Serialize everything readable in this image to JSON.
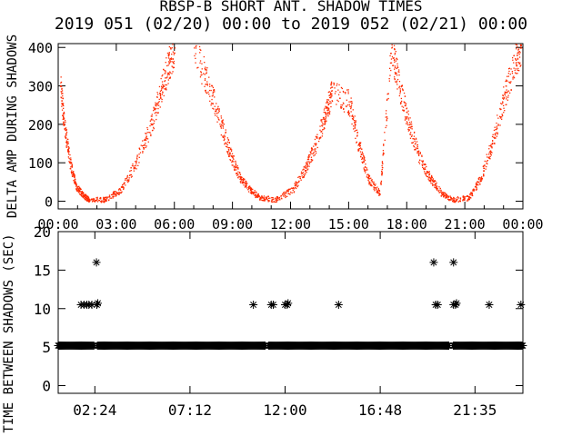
{
  "title": "RBSP-B SHORT ANT. SHADOW TIMES",
  "subtitle": "2019 051 (02/20) 00:00 to 2019 052 (02/21) 00:00",
  "colors": {
    "scatter": "#ff2a00",
    "axes": "#000000",
    "background": "#ffffff"
  },
  "chart_data": [
    {
      "type": "scatter",
      "panel": "top",
      "ylabel": "DELTA AMP DURING SHADOWS",
      "xlabel": "",
      "ylim": [
        -20,
        410
      ],
      "y_ticks": [
        "0",
        "100",
        "200",
        "300",
        "400"
      ],
      "y_tick_values": [
        0,
        100,
        200,
        300,
        400
      ],
      "xlim": [
        0,
        24
      ],
      "x_ticks": [
        "00:00",
        "03:00",
        "06:00",
        "09:00",
        "12:00",
        "15:00",
        "18:00",
        "21:00",
        "00:00"
      ],
      "x_tick_values": [
        0,
        3,
        6,
        9,
        12,
        15,
        18,
        21,
        24
      ],
      "grid": false,
      "series": [
        {
          "values": [
            [
              0.1,
              300
            ],
            [
              0.3,
              200
            ],
            [
              0.6,
              100
            ],
            [
              0.9,
              40
            ],
            [
              1.3,
              15
            ],
            [
              1.6,
              5
            ],
            [
              2.4,
              5
            ],
            [
              3.2,
              30
            ],
            [
              4.0,
              100
            ],
            [
              4.8,
              200
            ],
            [
              5.3,
              290
            ],
            [
              5.7,
              360
            ],
            [
              6.0,
              400
            ],
            [
              7.0,
              400
            ],
            [
              7.8,
              300
            ],
            [
              8.4,
              200
            ],
            [
              8.9,
              120
            ],
            [
              9.4,
              60
            ],
            [
              9.9,
              30
            ],
            [
              10.4,
              10
            ],
            [
              11.2,
              5
            ],
            [
              12.1,
              30
            ],
            [
              12.8,
              90
            ],
            [
              13.3,
              150
            ],
            [
              13.8,
              230
            ],
            [
              14.1,
              280
            ],
            [
              15.0,
              260
            ],
            [
              15.5,
              150
            ],
            [
              16.0,
              60
            ],
            [
              16.6,
              20
            ],
            [
              17.2,
              400
            ],
            [
              17.6,
              300
            ],
            [
              18.1,
              200
            ],
            [
              18.6,
              120
            ],
            [
              19.2,
              60
            ],
            [
              19.8,
              20
            ],
            [
              20.4,
              5
            ],
            [
              21.2,
              10
            ],
            [
              21.8,
              60
            ],
            [
              22.4,
              150
            ],
            [
              23.0,
              270
            ],
            [
              23.6,
              370
            ],
            [
              23.9,
              400
            ]
          ]
        }
      ]
    },
    {
      "type": "scatter",
      "panel": "bottom",
      "ylabel": "TIME BETWEEN SHADOWS (SEC)",
      "xlabel": "",
      "ylim": [
        -1,
        20
      ],
      "y_ticks": [
        "0",
        "5",
        "10",
        "15",
        "20"
      ],
      "y_tick_values": [
        0,
        5,
        10,
        15,
        20
      ],
      "xlim": [
        0.55,
        24
      ],
      "x_ticks": [
        "02:24",
        "07:12",
        "12:00",
        "16:48",
        "21:35"
      ],
      "x_tick_values": [
        2.4,
        7.2,
        12.0,
        16.8,
        21.583
      ],
      "grid": false,
      "baseline_value": 5.2,
      "baseline_gaps": [
        [
          2.35,
          2.5
        ],
        [
          11.0,
          11.15
        ],
        [
          20.3,
          20.45
        ]
      ],
      "series": [
        {
          "values": [
            [
              1.7,
              10.5
            ],
            [
              1.85,
              10.5
            ],
            [
              2.0,
              10.5
            ],
            [
              2.1,
              10.5
            ],
            [
              2.25,
              10.5
            ],
            [
              2.48,
              16.0
            ],
            [
              2.5,
              10.5
            ],
            [
              2.55,
              10.7
            ],
            [
              10.4,
              10.5
            ],
            [
              11.3,
              10.5
            ],
            [
              11.4,
              10.5
            ],
            [
              12.0,
              10.5
            ],
            [
              12.1,
              10.5
            ],
            [
              12.15,
              10.7
            ],
            [
              14.7,
              10.5
            ],
            [
              19.5,
              16.0
            ],
            [
              19.6,
              10.5
            ],
            [
              19.7,
              10.5
            ],
            [
              20.5,
              16.0
            ],
            [
              20.5,
              10.5
            ],
            [
              20.6,
              10.5
            ],
            [
              20.65,
              10.7
            ],
            [
              22.3,
              10.5
            ],
            [
              23.9,
              10.5
            ]
          ]
        }
      ]
    }
  ]
}
